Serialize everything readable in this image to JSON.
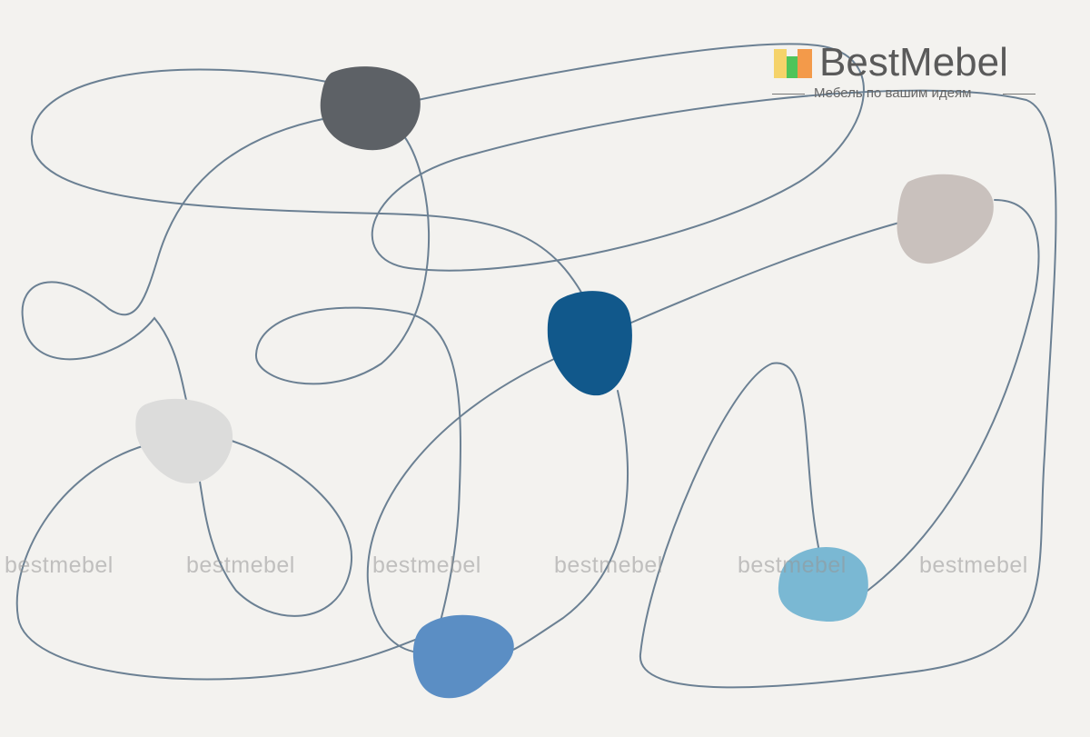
{
  "logo": {
    "brand": "BestMebel",
    "tagline": "Мебель по вашим идеям"
  },
  "watermarks": [
    "bestmebel",
    "bestmebel",
    "bestmebel",
    "bestmebel",
    "bestmebel",
    "bestmebel"
  ],
  "colors": {
    "background": "#f3f2ef",
    "line": "#6b8093",
    "dark_gray": "#5d6166",
    "beige": "#c9c1bd",
    "navy": "#11588b",
    "light_gray": "#dcdcdb",
    "light_blue": "#7ab8d3",
    "medium_blue": "#5b8ec4"
  }
}
